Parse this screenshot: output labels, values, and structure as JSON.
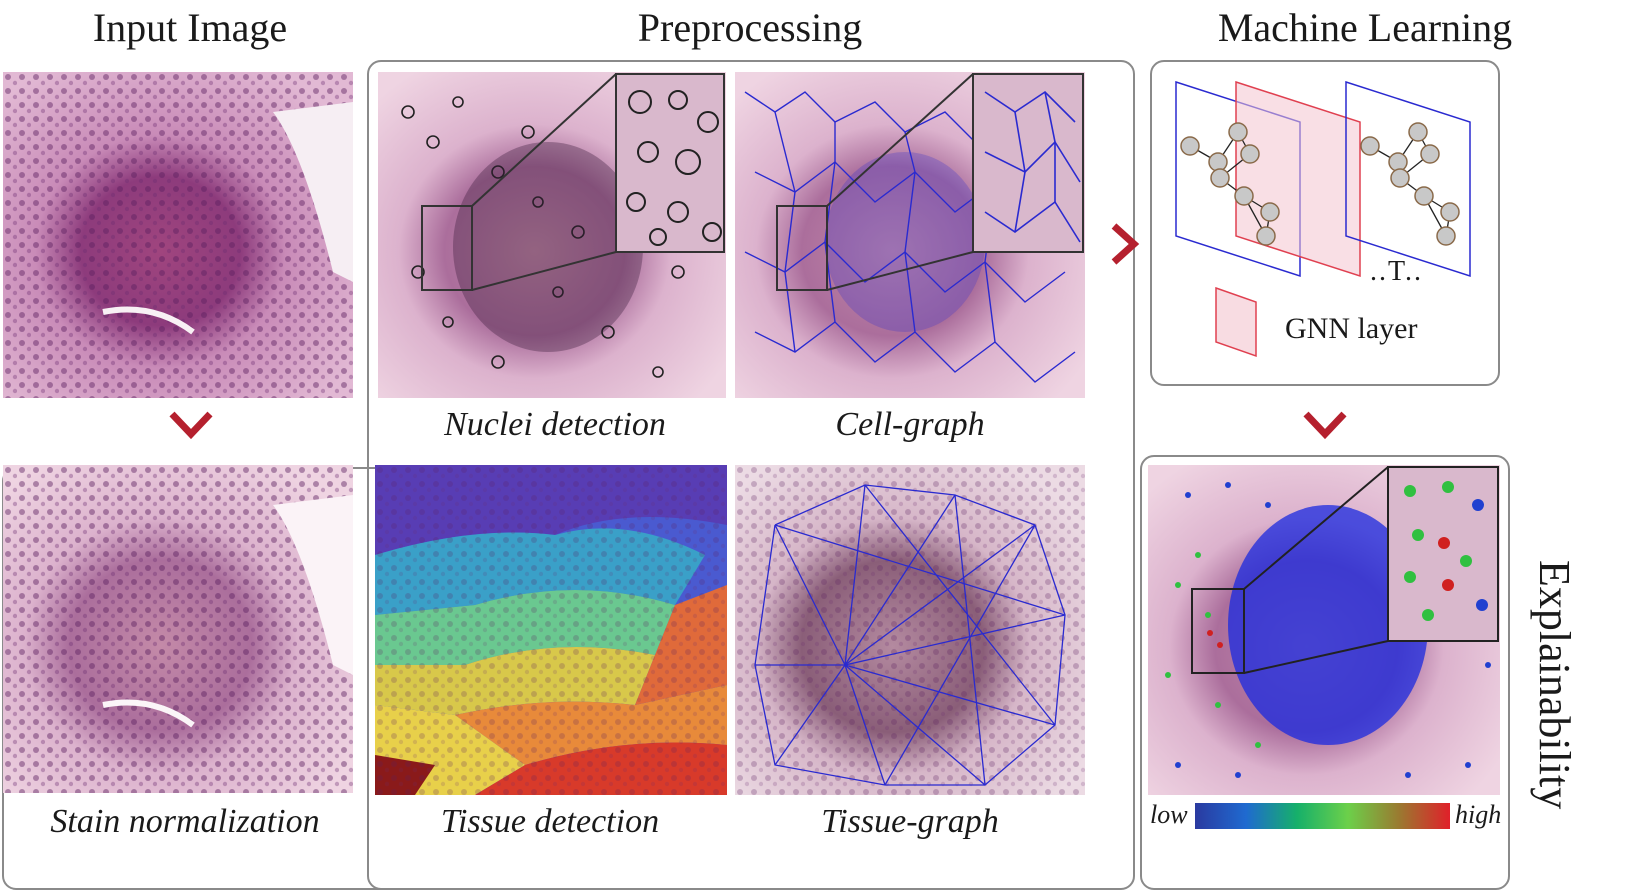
{
  "headers": {
    "input": "Input Image",
    "preprocessing": "Preprocessing",
    "ml": "Machine Learning"
  },
  "captions": {
    "stain": "Stain normalization",
    "nuclei": "Nuclei detection",
    "cellgraph": "Cell-graph",
    "tissue": "Tissue detection",
    "tissuegraph": "Tissue-graph"
  },
  "ml_panel": {
    "gnn_label": "GNN layer",
    "ellipsis": "..T.."
  },
  "explainability": {
    "title": "Explainability",
    "legend_low": "low",
    "legend_high": "high"
  },
  "colors": {
    "chevron": "#b5202e",
    "tissue_pink": "#c98bb8",
    "graph_blue": "#2a2ad0",
    "gnn_pink": "#f4c5cf"
  }
}
